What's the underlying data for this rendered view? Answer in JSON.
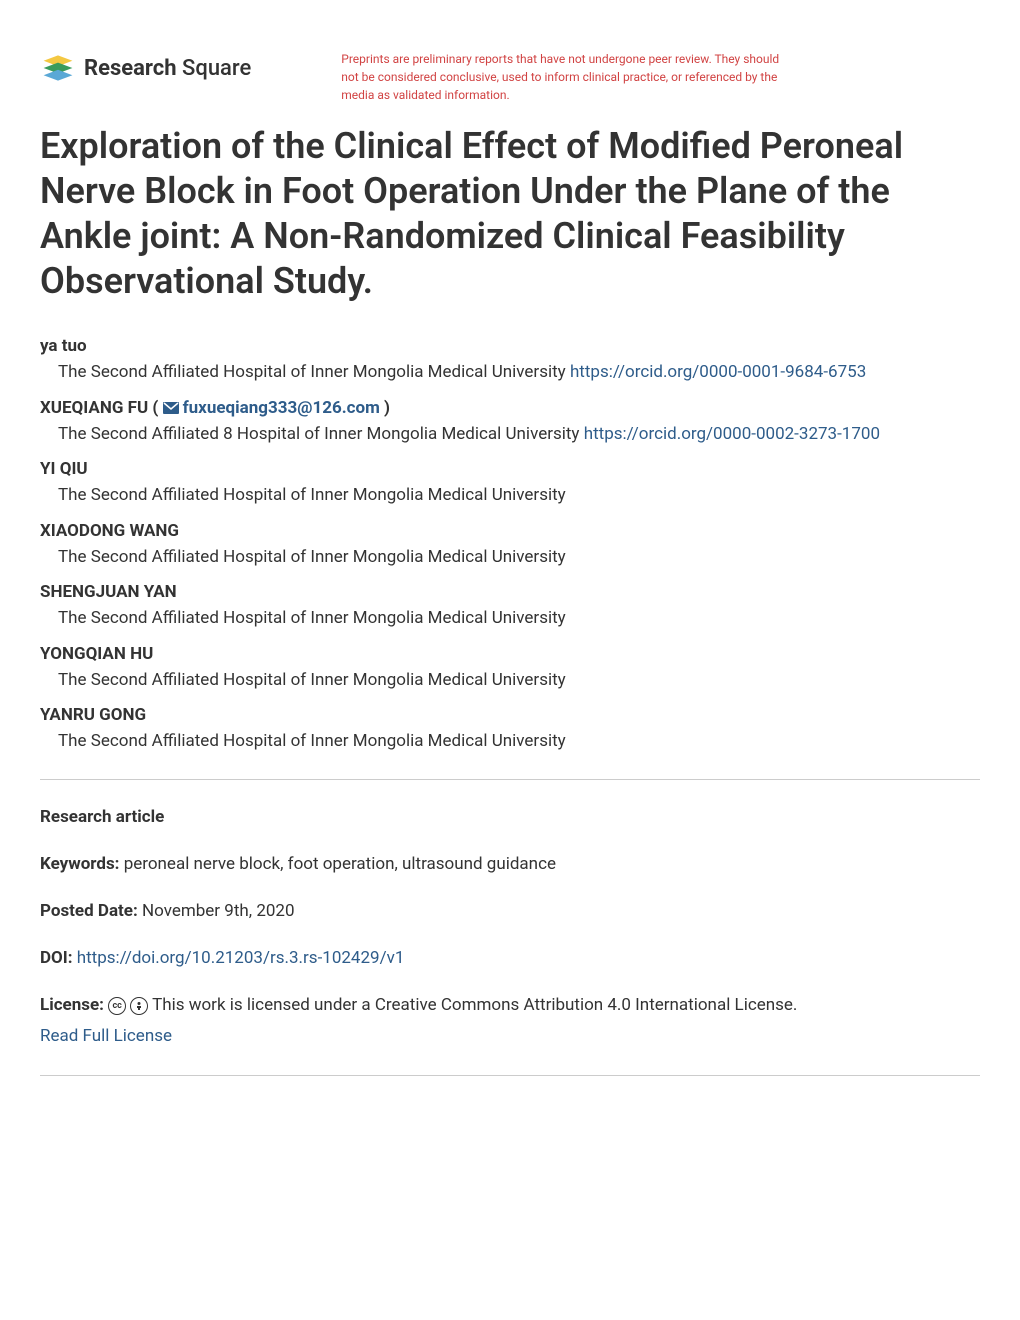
{
  "header": {
    "logo_text_bold": "Research",
    "logo_text_light": "Square",
    "disclaimer": "Preprints are preliminary reports that have not undergone peer review. They should not be considered conclusive, used to inform clinical practice, or referenced by the media as validated information.",
    "disclaimer_color": "#d14343"
  },
  "title": "Exploration of the Clinical Effect of Modified Peroneal Nerve Block in Foot Operation Under the Plane of the Ankle joint: A Non-Randomized Clinical Feasibility Observational Study.",
  "authors": [
    {
      "name": "ya tuo",
      "affiliation": "The Second Affiliated Hospital of Inner Mongolia Medical University",
      "orcid": "https://orcid.org/0000-0001-9684-6753",
      "email": null
    },
    {
      "name": "XUEQIANG FU",
      "affiliation": "The Second Affiliated 8 Hospital of Inner Mongolia Medical University",
      "orcid": "https://orcid.org/0000-0002-3273-1700",
      "email": "fuxueqiang333@126.com"
    },
    {
      "name": "YI QIU",
      "affiliation": "The Second Affiliated Hospital of Inner Mongolia Medical University",
      "orcid": null,
      "email": null
    },
    {
      "name": "XIAODONG WANG",
      "affiliation": "The Second Affiliated Hospital of Inner Mongolia Medical University",
      "orcid": null,
      "email": null
    },
    {
      "name": "SHENGJUAN YAN",
      "affiliation": "The Second Affiliated Hospital of Inner Mongolia Medical University",
      "orcid": null,
      "email": null
    },
    {
      "name": "YONGQIAN HU",
      "affiliation": "The Second Affiliated Hospital of Inner Mongolia Medical University",
      "orcid": null,
      "email": null
    },
    {
      "name": "YANRU GONG",
      "affiliation": "The Second Affiliated Hospital of Inner Mongolia Medical University",
      "orcid": null,
      "email": null
    }
  ],
  "article_type": "Research article",
  "keywords_label": "Keywords:",
  "keywords": "peroneal nerve block, foot operation, ultrasound guidance",
  "posted_date_label": "Posted Date:",
  "posted_date": "November 9th, 2020",
  "doi_label": "DOI:",
  "doi": "https://doi.org/10.21203/rs.3.rs-102429/v1",
  "license_label": "License:",
  "license_text": "This work is licensed under a Creative Commons Attribution 4.0 International License.",
  "license_link": "Read Full License",
  "colors": {
    "link": "#2e5c8a",
    "text": "#333333",
    "divider": "#cccccc"
  }
}
